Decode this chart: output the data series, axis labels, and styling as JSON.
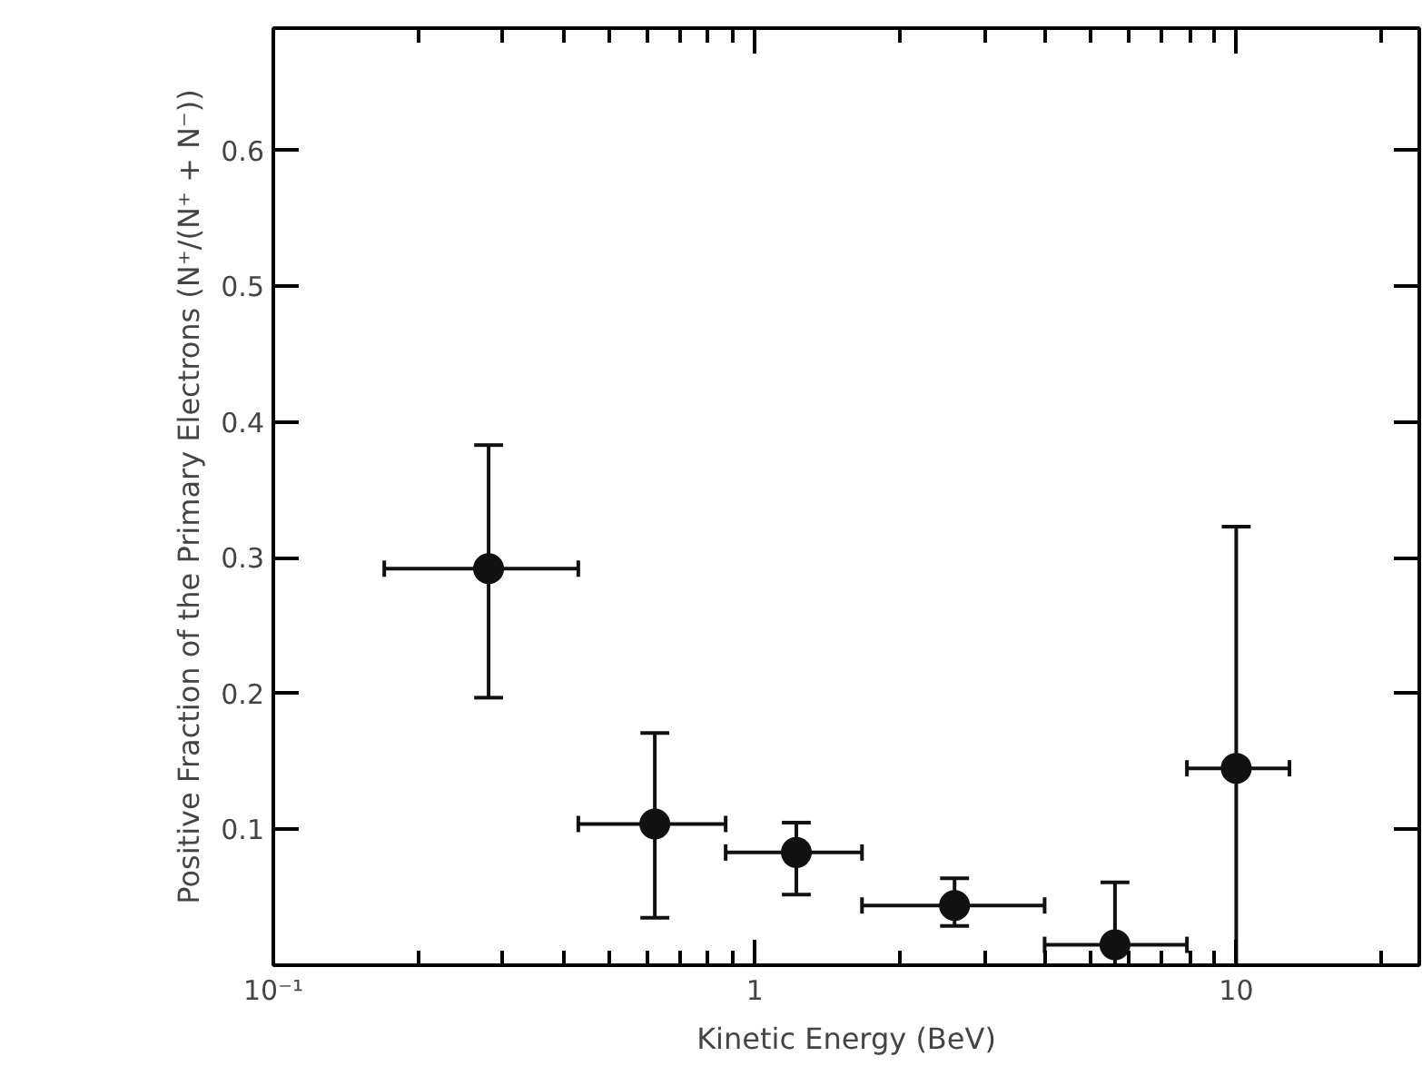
{
  "chart_data": {
    "type": "scatter",
    "xlabel": "Kinetic Energy (BeV)",
    "ylabel": "Positive Fraction of the Primary Electrons (N⁺/(N⁺ + N⁻))",
    "x": [
      0.28,
      0.62,
      1.22,
      2.6,
      5.6,
      10.0
    ],
    "values": [
      0.292,
      0.104,
      0.083,
      0.044,
      0.015,
      0.145
    ],
    "errors": [
      [
        0.197,
        0.383
      ],
      [
        0.035,
        0.171
      ],
      [
        0.052,
        0.105
      ],
      [
        0.029,
        0.064
      ],
      [
        0.0,
        0.061
      ],
      [
        0.0,
        0.323
      ]
    ],
    "xerrors": [
      [
        0.17,
        0.43
      ],
      [
        0.43,
        0.87
      ],
      [
        0.87,
        1.67
      ],
      [
        1.67,
        4.0
      ],
      [
        4.0,
        7.9
      ],
      [
        7.9,
        12.9
      ]
    ],
    "color": "#111111",
    "marker": "circle",
    "log": "x",
    "xlim": [
      0.1,
      24
    ],
    "ylim": [
      0,
      0.69
    ],
    "xticks": [
      {
        "value": 0.1,
        "label": "10⁻¹"
      },
      {
        "value": 0.2,
        "label": null
      },
      {
        "value": 0.3,
        "label": null
      },
      {
        "value": 0.4,
        "label": null
      },
      {
        "value": 0.5,
        "label": null
      },
      {
        "value": 0.6,
        "label": null
      },
      {
        "value": 0.7,
        "label": null
      },
      {
        "value": 0.8,
        "label": null
      },
      {
        "value": 0.9,
        "label": null
      },
      1,
      {
        "value": 2,
        "label": null
      },
      {
        "value": 3,
        "label": null
      },
      {
        "value": 4,
        "label": null
      },
      {
        "value": 5,
        "label": null
      },
      {
        "value": 6,
        "label": null
      },
      {
        "value": 7,
        "label": null
      },
      {
        "value": 8,
        "label": null
      },
      {
        "value": 9,
        "label": null
      },
      10,
      {
        "value": 20,
        "label": null
      }
    ],
    "yticks": [
      0.1,
      0.2,
      0.3,
      0.4,
      0.5,
      0.6
    ],
    "grid": false
  }
}
